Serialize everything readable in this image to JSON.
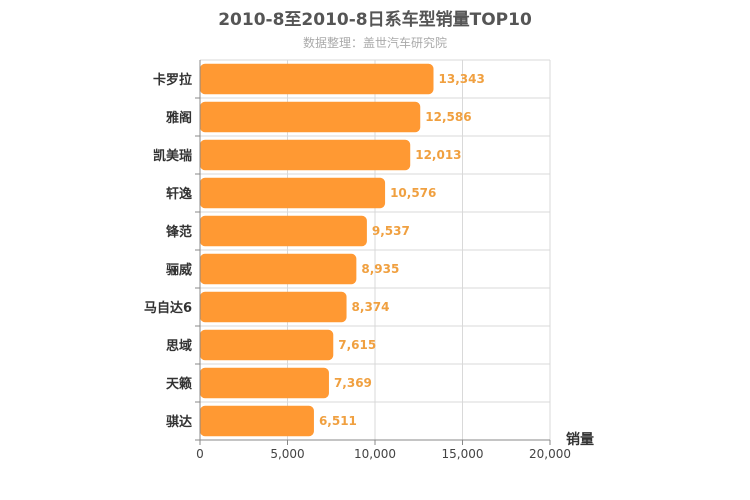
{
  "chart_data": {
    "type": "bar",
    "orientation": "horizontal",
    "title": "2010-8至2010-8日系车型销量TOP10",
    "subtitle": "数据整理：盖世汽车研究院",
    "xlabel": "销量",
    "ylabel": "",
    "xlim": [
      0,
      20000
    ],
    "x_ticks": [
      0,
      5000,
      10000,
      15000,
      20000
    ],
    "x_tick_labels": [
      "0",
      "5,000",
      "10,000",
      "15,000",
      "20,000"
    ],
    "grid": true,
    "legend": "none",
    "categories": [
      "卡罗拉",
      "雅阁",
      "凯美瑞",
      "轩逸",
      "锋范",
      "骊威",
      "马自达6",
      "思域",
      "天籁",
      "骐达"
    ],
    "values": [
      13343,
      12586,
      12013,
      10576,
      9537,
      8935,
      8374,
      7615,
      7369,
      6511
    ],
    "value_labels": [
      "13,343",
      "12,586",
      "12,013",
      "10,576",
      "9,537",
      "8,935",
      "8,374",
      "7,615",
      "7,369",
      "6,511"
    ],
    "colors": {
      "bar": "#ff9933",
      "value_label": "#f0a040",
      "grid": "#d9d9d9",
      "axis": "#888888",
      "category_label": "#333333",
      "title": "#555555",
      "subtitle": "#aaaaaa"
    }
  }
}
